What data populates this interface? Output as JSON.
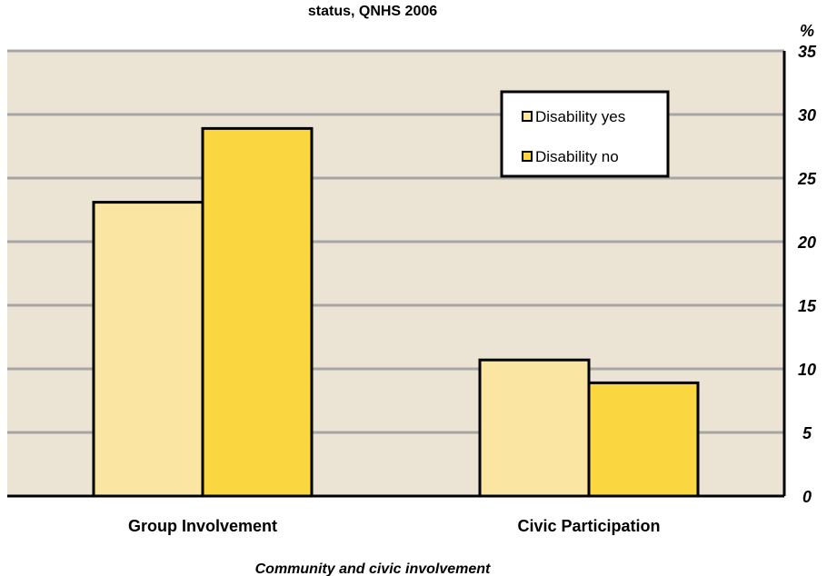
{
  "chart_data": {
    "type": "bar",
    "title": "status,  QNHS  2006",
    "xlabel": "Community and civic involvement",
    "ylabel": "",
    "y_unit": "%",
    "categories": [
      "Group Involvement",
      "Civic Participation"
    ],
    "series": [
      {
        "name": "Disability yes",
        "values": [
          23.1,
          10.7
        ],
        "color": "#fae5a3"
      },
      {
        "name": "Disability no",
        "values": [
          28.9,
          8.9
        ],
        "color": "#fad640"
      }
    ],
    "ylim": [
      0,
      35
    ],
    "yticks": [
      0,
      5,
      10,
      15,
      20,
      25,
      30,
      35
    ],
    "grid": true,
    "legend_position": "top-right",
    "colors": {
      "plot_background": "#ebe3d3",
      "gridline": "#a6a6a6",
      "bar_border": "#000000"
    }
  }
}
